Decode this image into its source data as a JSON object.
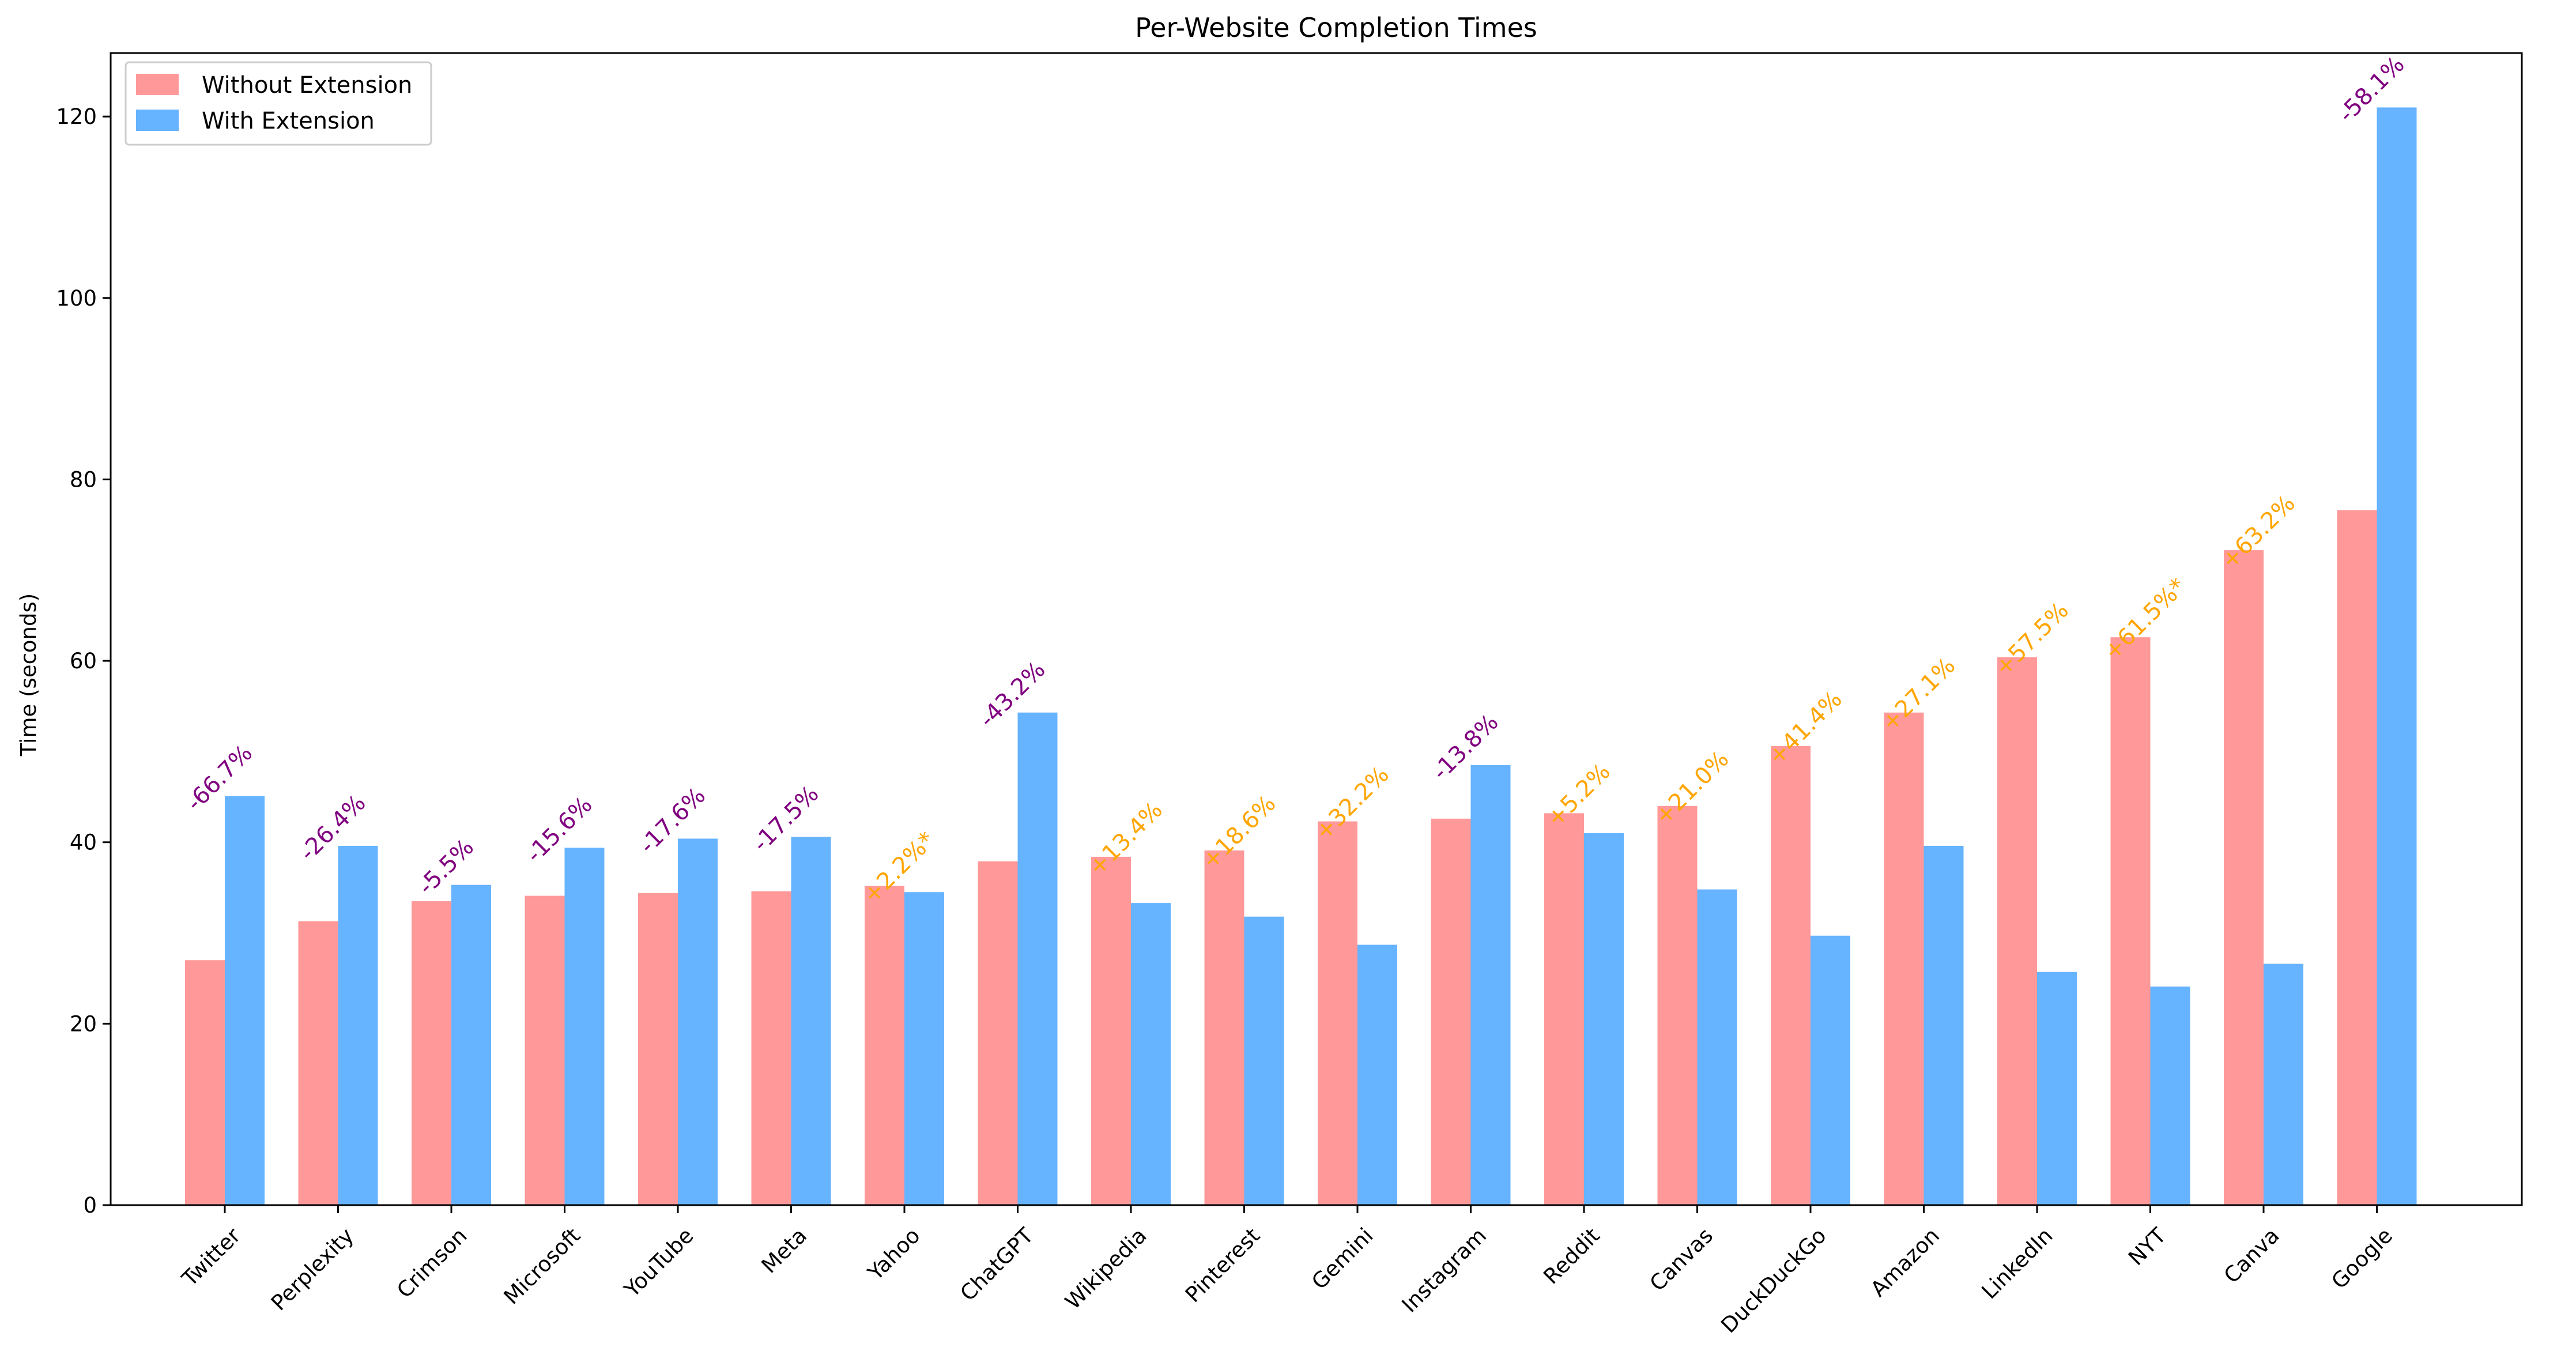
{
  "chart_data": {
    "type": "bar",
    "title": "Per-Website Completion Times",
    "xlabel": "",
    "ylabel": "Time (seconds)",
    "ylim": [
      0,
      127
    ],
    "yticks": [
      0,
      20,
      40,
      60,
      80,
      100,
      120
    ],
    "grid": false,
    "legend_position": "top-left",
    "categories": [
      "Twitter",
      "Perplexity",
      "Crimson",
      "Microsoft",
      "YouTube",
      "Meta",
      "Yahoo",
      "ChatGPT",
      "Wikipedia",
      "Pinterest",
      "Gemini",
      "Instagram",
      "Reddit",
      "Canvas",
      "DuckDuckGo",
      "Amazon",
      "LinkedIn",
      "NYT",
      "Canva",
      "Google"
    ],
    "series": [
      {
        "name": "Without Extension",
        "color": "#ff9999",
        "values": [
          27.0,
          31.3,
          33.5,
          34.1,
          34.4,
          34.6,
          35.2,
          37.9,
          38.4,
          39.1,
          42.3,
          42.6,
          43.2,
          44.0,
          50.6,
          54.3,
          60.4,
          62.6,
          72.2,
          76.6
        ]
      },
      {
        "name": "With Extension",
        "color": "#66b3ff",
        "values": [
          45.1,
          39.6,
          35.3,
          39.4,
          40.4,
          40.6,
          34.5,
          54.3,
          33.3,
          31.8,
          28.7,
          48.5,
          41.0,
          34.8,
          29.7,
          39.6,
          25.7,
          24.1,
          26.6,
          121.0
        ]
      }
    ],
    "annotations": [
      "-66.7%",
      "-26.4%",
      "-5.5%",
      "-15.6%",
      "-17.6%",
      "-17.5%",
      "+2.2%*",
      "-43.2%",
      "+13.4%",
      "+18.6%",
      "+32.2%",
      "-13.8%",
      "+5.2%",
      "+21.0%",
      "+41.4%",
      "+27.1%",
      "+57.5%",
      "+61.5%*",
      "+63.2%",
      "-58.1%"
    ],
    "annotation_colors": {
      "negative": "#800080",
      "positive": "#ffa500"
    }
  }
}
